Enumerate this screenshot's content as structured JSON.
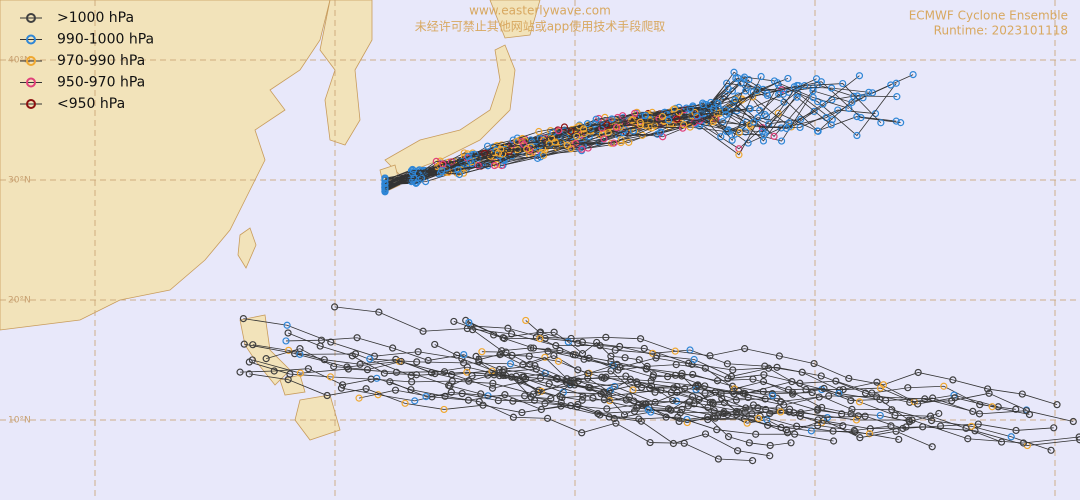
{
  "header": {
    "site": "www.easterlywave.com",
    "notice": "未经许可禁止其他网站或app使用技术手段爬取",
    "title": "ECMWF Cyclone Ensemble",
    "runtime": "Runtime: 2023101118"
  },
  "legend": [
    {
      "label": ">1000 hPa",
      "color": "#404040"
    },
    {
      "label": "990-1000 hPa",
      "color": "#2f86d6"
    },
    {
      "label": "970-990 hPa",
      "color": "#f0a830"
    },
    {
      "label": "950-970 hPa",
      "color": "#e0407a"
    },
    {
      "label": "<950 hPa",
      "color": "#8b1010"
    }
  ],
  "latitude_labels": [
    "40°N",
    "30°N",
    "20°N",
    "10°N"
  ]
}
